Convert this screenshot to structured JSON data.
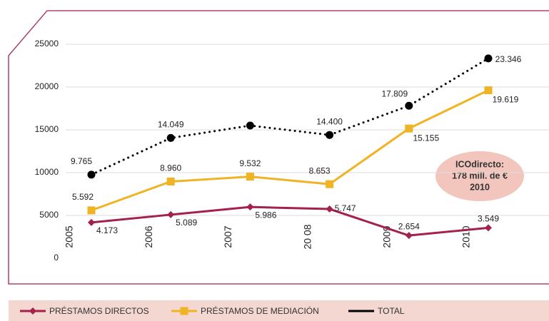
{
  "chart_data": {
    "type": "line",
    "categories": [
      "2005",
      "2006",
      "2007",
      "20 08",
      "2009",
      "2010"
    ],
    "series": [
      {
        "name": "PRÉSTAMOS DIRECTOS",
        "color": "#a3224a",
        "marker": "diamond",
        "values": [
          4173,
          5089,
          5986,
          5747,
          2654,
          3549
        ],
        "value_labels": [
          "4.173",
          "5.089",
          "5.986",
          "5.747",
          "2.654",
          "3.549"
        ]
      },
      {
        "name": "PRÉSTAMOS DE MEDIACIÓN",
        "color": "#f0b323",
        "marker": "square",
        "values": [
          5592,
          8960,
          9532,
          8653,
          15155,
          19619
        ],
        "value_labels": [
          "5.592",
          "8.960",
          "9.532",
          "8.653",
          "15.155",
          "19.619"
        ]
      },
      {
        "name": "TOTAL",
        "color": "#000000",
        "marker": "circle",
        "dotted": true,
        "values": [
          9765,
          14049,
          15500,
          14400,
          17809,
          23346
        ],
        "value_labels": [
          "9.765",
          "14.049",
          null,
          "14.400",
          "17.809",
          "23.346"
        ]
      }
    ],
    "ylim": [
      0,
      25000
    ],
    "yticks": [
      0,
      5000,
      10000,
      15000,
      20000,
      25000
    ],
    "grid": true,
    "annotation": [
      "ICOdirecto:",
      "178 mill. de €",
      "2010"
    ],
    "legend": "bottom"
  }
}
